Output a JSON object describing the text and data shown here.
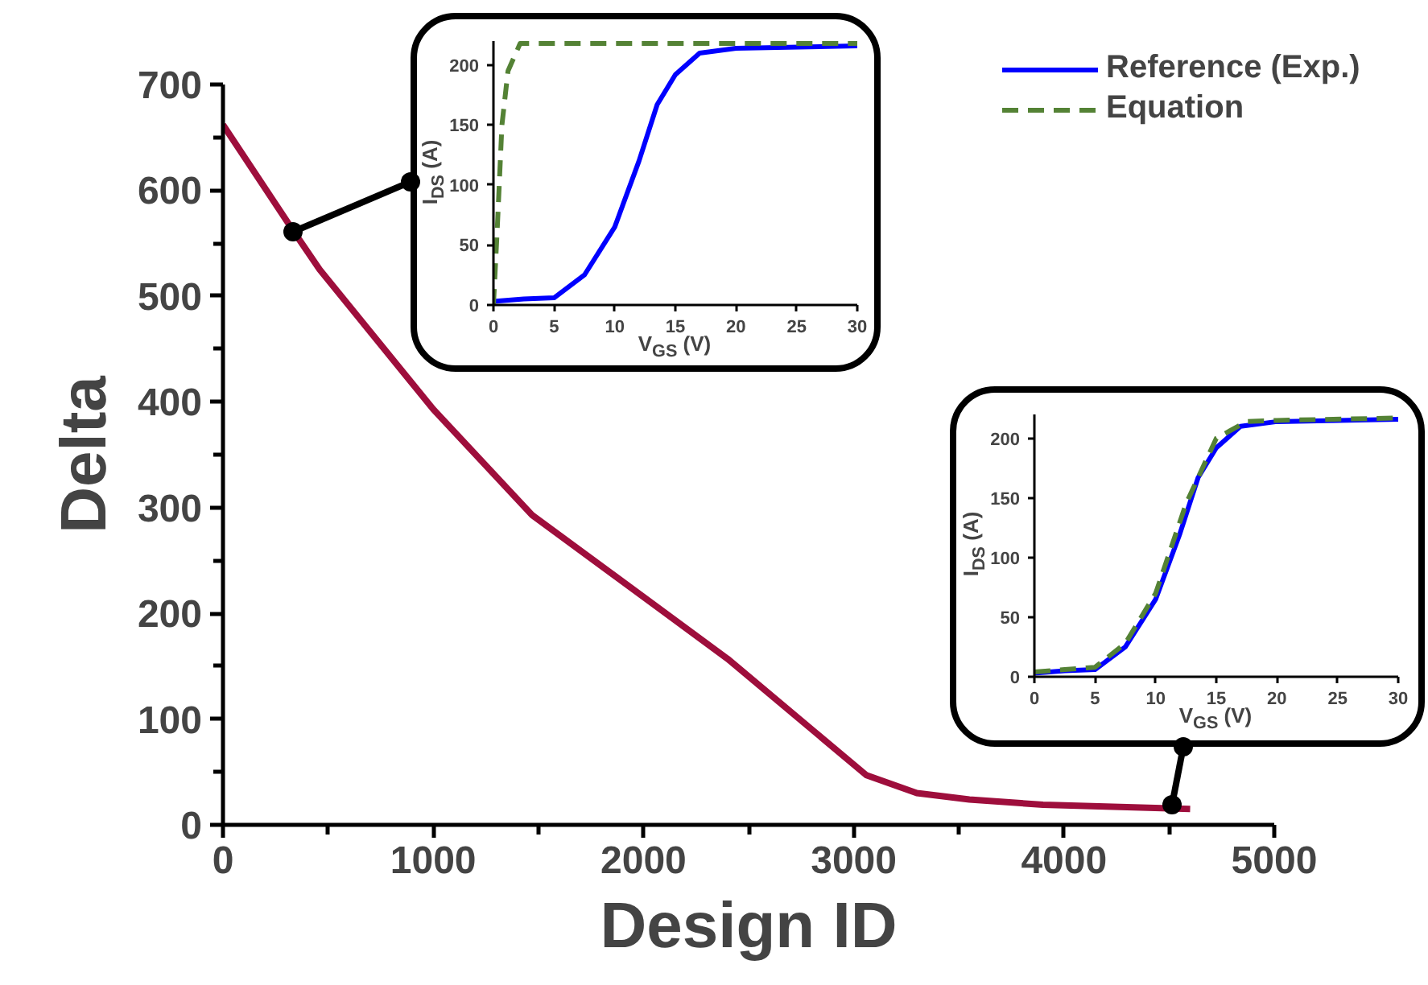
{
  "chart_data": [
    {
      "type": "line",
      "xlabel": "Design ID",
      "ylabel": "Delta",
      "x": [
        0,
        340,
        460,
        1000,
        1470,
        2400,
        3060,
        3300,
        3550,
        3900,
        4600
      ],
      "values": [
        662,
        560,
        525,
        393,
        293,
        157,
        47,
        30,
        24,
        19,
        15
      ],
      "color": "#9e0e3c",
      "xlim": [
        0,
        5000
      ],
      "ylim": [
        0,
        700
      ],
      "xticks": [
        0,
        1000,
        2000,
        3000,
        4000,
        5000
      ],
      "yticks": [
        0,
        100,
        200,
        300,
        400,
        500,
        600,
        700
      ]
    },
    {
      "type": "line",
      "xlabel": "V$_{GS}$ (V)",
      "ylabel": "I$_{DS}$ (A)",
      "legend": "right",
      "xlim": [
        0,
        30
      ],
      "ylim": [
        0,
        220
      ],
      "xticks": [
        0,
        5,
        10,
        15,
        20,
        25,
        30
      ],
      "yticks": [
        0,
        50,
        100,
        150,
        200
      ],
      "series": [
        {
          "name": "Reference (Exp.)",
          "color": "#0000ff",
          "line_style": "solid",
          "x": [
            0,
            2.5,
            5,
            7.5,
            10,
            12,
            13.5,
            15,
            17,
            20,
            30
          ],
          "values": [
            3,
            5,
            6,
            25,
            65,
            120,
            167,
            192,
            210,
            214,
            216
          ]
        },
        {
          "name": "Equation",
          "color": "#548235",
          "line_style": "dashed",
          "x": [
            0,
            0.3,
            0.7,
            1.2,
            2.2,
            30
          ],
          "values": [
            0,
            60,
            150,
            195,
            218,
            218
          ]
        }
      ]
    },
    {
      "type": "line",
      "xlabel": "V$_{GS}$ (V)",
      "ylabel": "I$_{DS}$ (A)",
      "xlim": [
        0,
        30
      ],
      "ylim": [
        0,
        220
      ],
      "xticks": [
        0,
        5,
        10,
        15,
        20,
        25,
        30
      ],
      "yticks": [
        0,
        50,
        100,
        150,
        200
      ],
      "series": [
        {
          "color": "#0000ff",
          "line_style": "solid",
          "x": [
            0,
            2.5,
            5,
            7.5,
            10,
            12,
            13.5,
            15,
            17,
            20,
            30
          ],
          "values": [
            3,
            5,
            6,
            25,
            65,
            120,
            167,
            192,
            210,
            214,
            216
          ]
        },
        {
          "color": "#548235",
          "line_style": "dashed",
          "x": [
            0,
            2.5,
            5,
            7.5,
            10,
            12.5,
            15,
            17.5,
            20,
            30
          ],
          "values": [
            4,
            6,
            8,
            28,
            70,
            145,
            200,
            214,
            215,
            217
          ]
        }
      ]
    }
  ]
}
